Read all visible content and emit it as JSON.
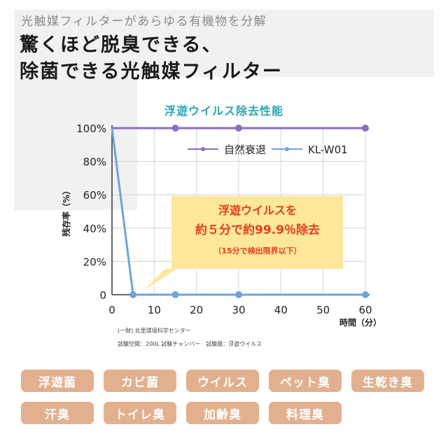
{
  "header": {
    "subtitle": "光触媒フィルターがあらゆる有機物を分解",
    "headline_line1": "驚くほど脱臭できる、",
    "headline_line2": "除菌できる光触媒フィルター"
  },
  "chart_data": {
    "type": "line",
    "title": "浮遊ウイルス除去性能",
    "xlabel": "時間（分）",
    "ylabel": "残存率（%）",
    "x_ticks": [
      "0",
      "10",
      "20",
      "30",
      "40",
      "50",
      "60"
    ],
    "y_ticks": [
      "0",
      "20%",
      "40%",
      "60%",
      "80%",
      "100%"
    ],
    "xlim": [
      0,
      60
    ],
    "ylim": [
      0,
      100
    ],
    "grid": true,
    "legend_position": "top-right",
    "series": [
      {
        "name": "自然衰退",
        "color": "#8a6fc0",
        "x": [
          0,
          15,
          30,
          60
        ],
        "y": [
          100,
          100,
          100,
          100
        ]
      },
      {
        "name": "KL-W01",
        "color": "#6fa3dc",
        "x": [
          0,
          5,
          15,
          30,
          60
        ],
        "y": [
          100,
          0,
          0,
          0,
          0
        ]
      }
    ],
    "callout": {
      "line1": "浮遊ウイルスを",
      "line2": "約５分で約99.9％除去",
      "line3": "（15分で検出限界以下）",
      "bg_color": "#fde79a",
      "text_color": "#e2401e"
    }
  },
  "notes": {
    "line1": "(一財) 北里環境科学センター",
    "line2": "試験空間：200L 試験チャンバー　試験菌：浮遊ウイルス"
  },
  "tags": {
    "row1": [
      "浮遊菌",
      "カビ菌",
      "ウイルス",
      "ペット臭",
      "生乾き臭"
    ],
    "row2": [
      "汗臭",
      "トイレ臭",
      "加齢臭",
      "料理臭"
    ],
    "color": "#e2b08e"
  }
}
